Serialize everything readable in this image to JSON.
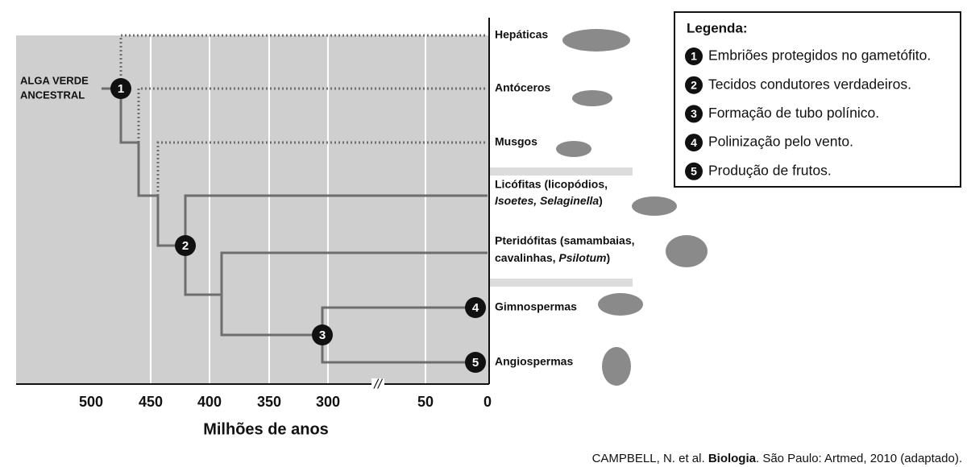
{
  "root_label": [
    "ALGA VERDE",
    "ANCESTRAL"
  ],
  "taxa": [
    {
      "lines": [
        [
          "Hepáticas"
        ]
      ]
    },
    {
      "lines": [
        [
          "Antóceros"
        ]
      ]
    },
    {
      "lines": [
        [
          "Musgos"
        ]
      ]
    },
    {
      "lines": [
        [
          "Licófitas (licopódios,"
        ],
        [
          "Isoetes, Selaginella",
          ")"
        ]
      ]
    },
    {
      "lines": [
        [
          "Pteridófitas (samambaias,"
        ],
        [
          "cavalinhas, ",
          "Psilotum",
          ")"
        ]
      ]
    },
    {
      "lines": [
        [
          "Gimnospermas"
        ]
      ]
    },
    {
      "lines": [
        [
          "Angiospermas"
        ]
      ]
    }
  ],
  "axis": {
    "ticks": [
      "500",
      "450",
      "400",
      "350",
      "300",
      "50",
      "0"
    ],
    "break": "//",
    "label": "Milhões de anos"
  },
  "legend": {
    "title": "Legenda:",
    "items": [
      {
        "number": "1",
        "text": "Embriões protegidos no gametófito."
      },
      {
        "number": "2",
        "text": "Tecidos condutores verdadeiros."
      },
      {
        "number": "3",
        "text": "Formação de tubo polínico."
      },
      {
        "number": "4",
        "text": "Polinização pelo vento."
      },
      {
        "number": "5",
        "text": "Produção de frutos."
      }
    ]
  },
  "citation": [
    "CAMPBELL, N. et al. ",
    "Biologia",
    ". São Paulo: Artmed, 2010 (adaptado)."
  ]
}
